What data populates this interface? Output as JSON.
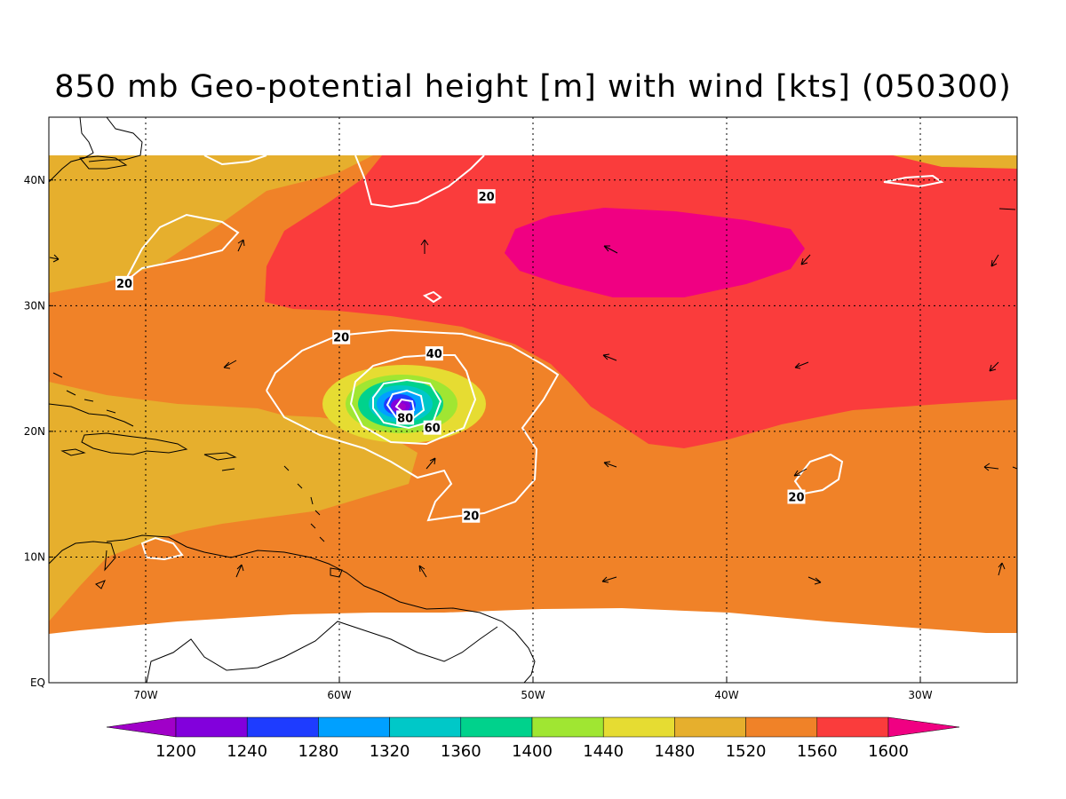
{
  "title": "850 mb Geo-potential height [m] with wind [kts] (050300)",
  "lat_ticks": [
    {
      "value": 0,
      "label": "EQ"
    },
    {
      "value": 10,
      "label": "10N"
    },
    {
      "value": 20,
      "label": "20N"
    },
    {
      "value": 30,
      "label": "30N"
    },
    {
      "value": 40,
      "label": "40N"
    }
  ],
  "lon_ticks": [
    {
      "value": -70,
      "label": "70W"
    },
    {
      "value": -60,
      "label": "60W"
    },
    {
      "value": -50,
      "label": "50W"
    },
    {
      "value": -40,
      "label": "40W"
    },
    {
      "value": -30,
      "label": "30W"
    }
  ],
  "colorbar": {
    "labels": [
      "1200",
      "1240",
      "1280",
      "1320",
      "1360",
      "1400",
      "1440",
      "1480",
      "1520",
      "1560",
      "1600"
    ],
    "colors": [
      "#a000c8",
      "#8200dc",
      "#1e3cff",
      "#00a0ff",
      "#00c8c8",
      "#00d28c",
      "#a0e632",
      "#e6dc32",
      "#e6af2d",
      "#f08228",
      "#fa3c3c",
      "#f00082"
    ]
  },
  "wind_contour_labels": [
    {
      "text": "20",
      "lon": -52.4,
      "lat": 38.7
    },
    {
      "text": "20",
      "lon": -71.1,
      "lat": 31.8
    },
    {
      "text": "20",
      "lon": -59.9,
      "lat": 27.5
    },
    {
      "text": "40",
      "lon": -55.1,
      "lat": 26.2
    },
    {
      "text": "80",
      "lon": -56.6,
      "lat": 21.1
    },
    {
      "text": "60",
      "lon": -55.2,
      "lat": 20.3
    },
    {
      "text": "20",
      "lon": -53.2,
      "lat": 13.3
    },
    {
      "text": "20",
      "lon": -36.4,
      "lat": 14.8
    }
  ]
}
